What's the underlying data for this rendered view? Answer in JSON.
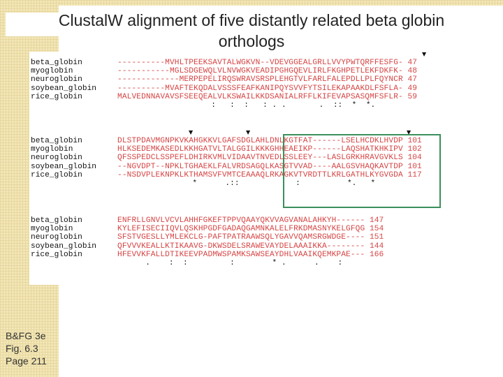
{
  "title": "ClustalW alignment of five distantly related beta globin orthologs",
  "caption": [
    "B&FG 3e",
    "Fig. 6.3",
    "Page 211"
  ],
  "marker_glyph": "▼",
  "colors": {
    "sequence": "#d64545",
    "box": "#3a8f5a",
    "background_pattern": "#f3e7b7"
  },
  "alignment": {
    "blocks": [
      {
        "rows": [
          {
            "name": "beta_globin",
            "seq": "----------MVHLTPEEKSAVTALWGKVN--VDEVGGEALGRLLVVYPWTQRFFESFG-",
            "end": "47"
          },
          {
            "name": "myoglobin",
            "seq": "-----------MGLSDGEWQLVLNVWGKVEADIPGHGQEVLIRLFKGHPETLEKFDKFK-",
            "end": "48"
          },
          {
            "name": "neuroglobin",
            "seq": "-------------MERPEPELIRQSWRAVSRSPLEHGTVLFARLFALEPDLLPLFQYNCR",
            "end": "47"
          },
          {
            "name": "soybean_globin",
            "seq": "----------MVAFTEKQDALVSSSFEAFKANIPQYSVVFYTSILEKAPAAKDLFSFLA-",
            "end": "49"
          },
          {
            "name": "rice_globin",
            "seq": "MALVEDNNAVAVSFSEEQEALVLKSWAILKKDSANIALRFFLKIFEVAPSASQMFSFLR-",
            "end": "59"
          }
        ],
        "consensus": "                    :   :  :   : . .       .  ::  *  *."
      },
      {
        "rows": [
          {
            "name": "beta_globin",
            "seq": "DLSTPDAVMGNPKVKAHGKKVLGAFSDGLAHLDNLKGTFAT------LSELHCDKLHVDP",
            "end": "101"
          },
          {
            "name": "myoglobin",
            "seq": "HLKSEDEMKASEDLKKHGATVLTALGGILKKKGHHEAEIKP------LAQSHATKHKIPV",
            "end": "102"
          },
          {
            "name": "neuroglobin",
            "seq": "QFSSPEDCLSSPEFLDHIRKVMLVIDAAVTNVEDLSSLEEY---LASLGRKHRAVGVKLS",
            "end": "104"
          },
          {
            "name": "soybean_globin",
            "seq": "--NGVDPT--NPKLTGHAEKLFALVRDSAGQLKASGTVVAD----AALGSVHAQKAVTDP",
            "end": "101"
          },
          {
            "name": "rice_globin",
            "seq": "--NSDVPLEKNPKLKTHAMSVFVMTCEAAAQLRKAGKVTVRDTTLKRLGATHLKYGVGDA",
            "end": "117"
          }
        ],
        "consensus": "                *      .::            :          *.   *"
      },
      {
        "rows": [
          {
            "name": "beta_globin",
            "seq": "ENFRLLGNVLVCVLAHHFGKEFTPPVQAAYQKVVAGVANALAHKYH------",
            "end": "147"
          },
          {
            "name": "myoglobin",
            "seq": "KYLEFISECIIQVLQSKHPGDFGADAQGAMNKALELFRKDMASNYKELGFQG",
            "end": "154"
          },
          {
            "name": "neuroglobin",
            "seq": "SFSTVGESLLYMLEKCLG-PAFTPATRAAWSQLYGAVVQAMSRGWDGE----",
            "end": "151"
          },
          {
            "name": "soybean_globin",
            "seq": "QFVVVKEALLKTIKAAVG-DKWSDELSRAWEVAYDELAAAIKKA--------",
            "end": "144"
          },
          {
            "name": "rice_globin",
            "seq": "HFEVVKFALLDTIKEEVPADMWSPAMKSAWSEAYDHLVAAIKQEMKPAE---",
            "end": "166"
          }
        ],
        "consensus": "      .    :  :         :        * .      .    :"
      }
    ]
  }
}
